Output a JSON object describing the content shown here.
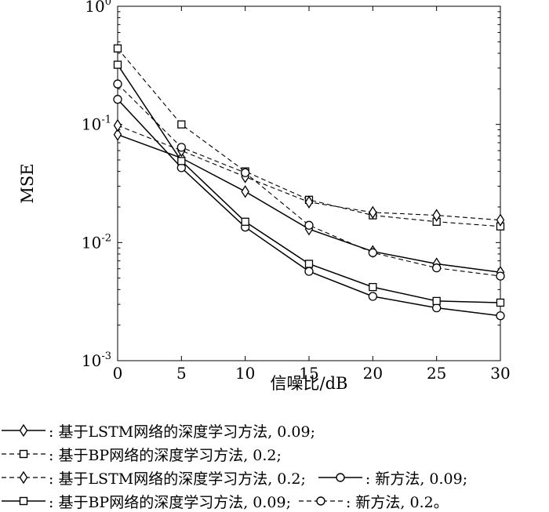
{
  "chart_data": {
    "type": "line",
    "xlabel": "信噪比/dB",
    "ylabel": "MSE",
    "x": [
      0,
      5,
      10,
      15,
      20,
      25,
      30
    ],
    "xticks": [
      "0",
      "5",
      "10",
      "15",
      "20",
      "25",
      "30"
    ],
    "xlim": [
      0,
      30
    ],
    "yscale": "log",
    "ylim": [
      0.001,
      1
    ],
    "yticks": [
      {
        "base": "10",
        "exp": "0"
      },
      {
        "base": "10",
        "exp": "-1"
      },
      {
        "base": "10",
        "exp": "-2"
      },
      {
        "base": "10",
        "exp": "-3"
      }
    ],
    "grid": false,
    "legend_placement": "bottom",
    "series": [
      {
        "label": ": 基于LSTM网络的深度学习方法, 0.09;",
        "marker": "diamond",
        "dash": "solid",
        "values": [
          0.082,
          0.052,
          0.027,
          0.013,
          0.0084,
          0.0066,
          0.0056
        ]
      },
      {
        "label": ": 基于BP网络的深度学习方法, 0.2;",
        "marker": "square",
        "dash": "dashed",
        "values": [
          0.44,
          0.1,
          0.04,
          0.023,
          0.017,
          0.015,
          0.0137
        ]
      },
      {
        "label": ": 基于LSTM网络的深度学习方法, 0.2;",
        "marker": "diamond",
        "dash": "dashed",
        "values": [
          0.098,
          0.06,
          0.036,
          0.022,
          0.018,
          0.017,
          0.0155
        ]
      },
      {
        "label": ": 新方法, 0.09;",
        "marker": "circle",
        "dash": "solid",
        "values": [
          0.163,
          0.043,
          0.0135,
          0.0057,
          0.0035,
          0.0028,
          0.0024
        ]
      },
      {
        "label": ": 基于BP网络的深度学习方法, 0.09;",
        "marker": "square",
        "dash": "solid",
        "values": [
          0.32,
          0.049,
          0.015,
          0.0066,
          0.0042,
          0.0032,
          0.0031
        ]
      },
      {
        "label": ": 新方法, 0.2。",
        "marker": "circle",
        "dash": "dashed",
        "values": [
          0.22,
          0.064,
          0.039,
          0.014,
          0.0082,
          0.0061,
          0.0052
        ]
      }
    ]
  }
}
